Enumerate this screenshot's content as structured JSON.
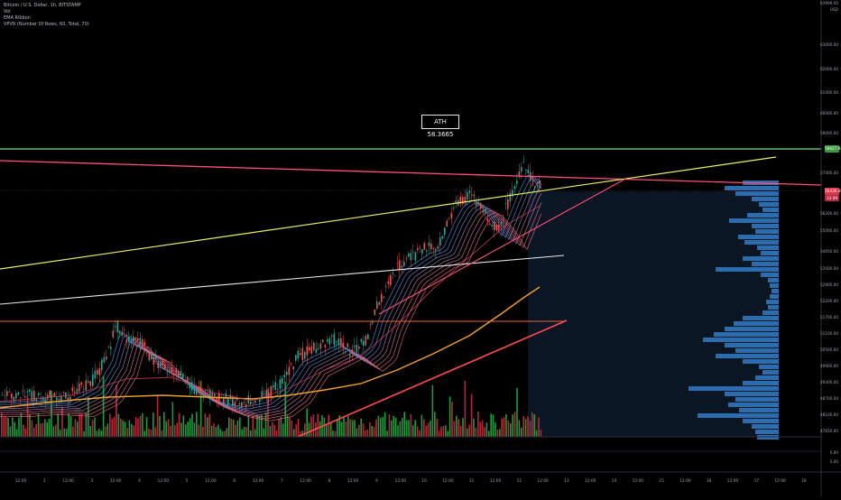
{
  "legend": {
    "symbol": "Bitcoin / U.S. Dollar, 1h, BITSTAMP",
    "vol": "Vol",
    "ema": "EMA Ribbon",
    "vpvr": "VPVR (Number Of Rows, 60, Total, 70)"
  },
  "ath_label": "ATH 58.3665",
  "price_tags": {
    "green": "58627.98",
    "red": "56436.40",
    "red_sub": "33:09"
  },
  "y_axis": {
    "top_label": "63999.00",
    "top_sub": "USD",
    "ticks": [
      "63000.00",
      "62000.00",
      "61000.00",
      "60000.00",
      "59000.00",
      "57400.00",
      "56200.00",
      "55000.00",
      "54050.00",
      "53500.00",
      "52900.00",
      "52200.00",
      "51700.00",
      "51100.00",
      "50500.00",
      "49900.00",
      "49300.00",
      "48700.00",
      "48100.00",
      "47650.00"
    ],
    "sub_ticks": [
      "0.00",
      "0.00"
    ]
  },
  "x_axis": {
    "labels": [
      "12:00",
      "2",
      "12:00",
      "3",
      "12:00",
      "4",
      "12:00",
      "5",
      "12:00",
      "6",
      "12:00",
      "7",
      "12:00",
      "8",
      "12:00",
      "9",
      "12:00",
      "10",
      "12:00",
      "11",
      "12:00",
      "12",
      "12:00",
      "13",
      "12:00",
      "14",
      "12:00",
      "15",
      "12:00",
      "16",
      "12:00",
      "17",
      "12:00",
      "18"
    ]
  },
  "colors": {
    "background": "#000000",
    "up": "#26a69a",
    "down": "#ef5350",
    "vol_up": "#1e9b3c",
    "vol_down": "#b8283c",
    "vpvr": "#2e72b6",
    "green_line": "#7ee07e",
    "pink_line": "#ff4f7a",
    "yellow_line": "#e8f06a",
    "white_line": "#e8e8e8",
    "orange_ema": "#f0a030",
    "red_trend": "#ff4d4d"
  }
}
